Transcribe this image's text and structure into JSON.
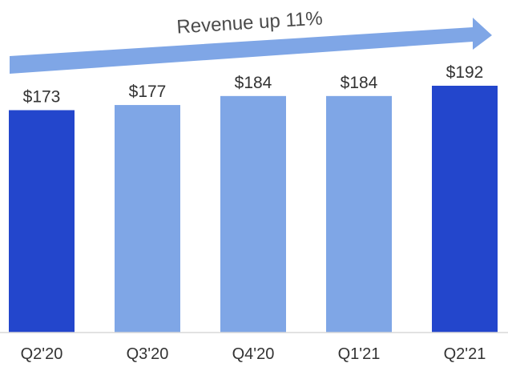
{
  "chart_data": {
    "type": "bar",
    "categories": [
      "Q2'20",
      "Q3'20",
      "Q4'20",
      "Q1'21",
      "Q2'21"
    ],
    "values": [
      173,
      177,
      184,
      184,
      192
    ],
    "value_labels": [
      "$173",
      "$177",
      "$184",
      "$184",
      "$192"
    ],
    "bar_colors": [
      "#2346cc",
      "#7fa6e6",
      "#7fa6e6",
      "#7fa6e6",
      "#2346cc"
    ],
    "title": "",
    "xlabel": "",
    "ylabel": "",
    "ylim": [
      0,
      192
    ],
    "grid": false,
    "annotation": {
      "text": "Revenue up 11%",
      "style": "upward arrow spanning all bars",
      "color": "#7fa6e6"
    }
  }
}
